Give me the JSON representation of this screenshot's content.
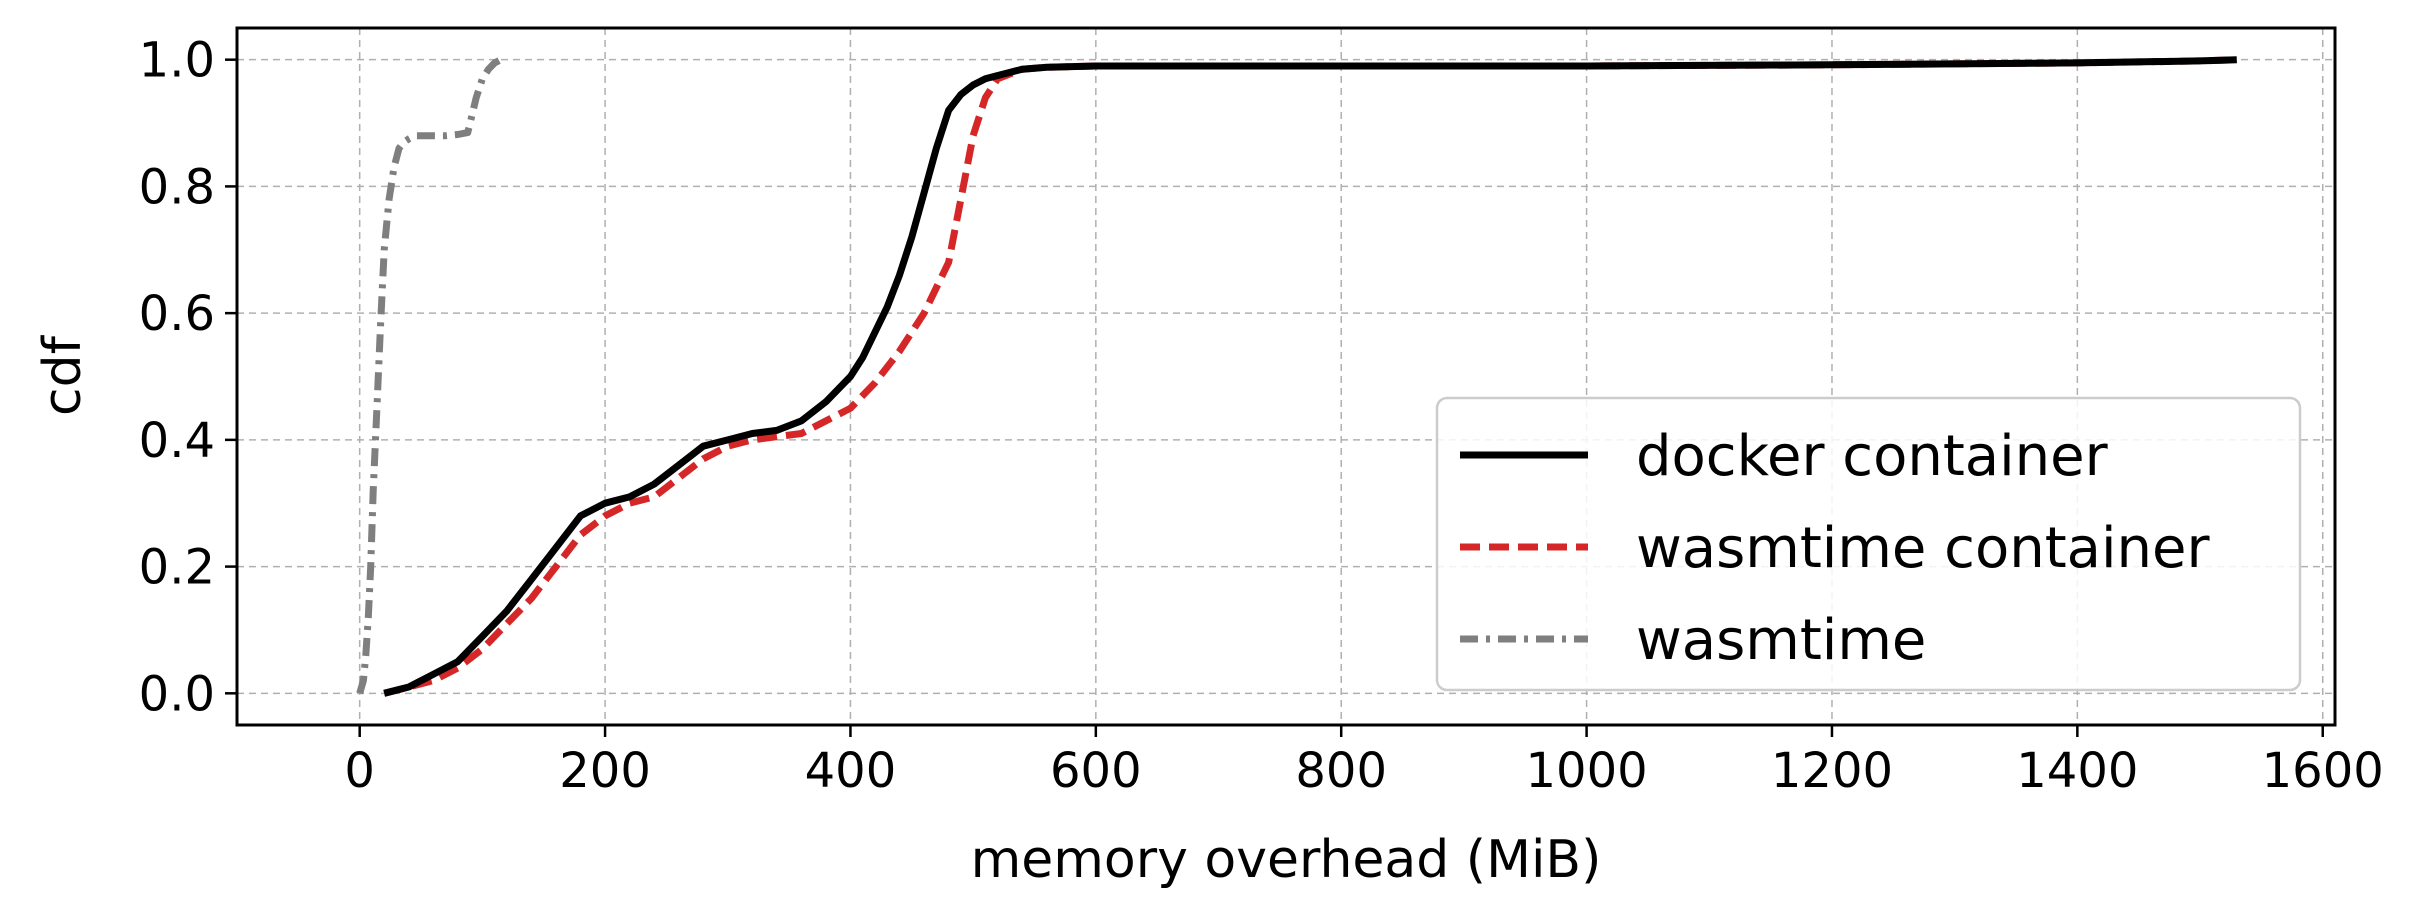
{
  "chart_data": {
    "type": "line",
    "xlabel": "memory overhead (MiB)",
    "ylabel": "cdf",
    "xlim": [
      -100,
      1610
    ],
    "ylim": [
      -0.05,
      1.05
    ],
    "xticks": [
      "0",
      "200",
      "400",
      "600",
      "800",
      "1000",
      "1200",
      "1400",
      "1600"
    ],
    "yticks": [
      "0.0",
      "0.2",
      "0.4",
      "0.6",
      "0.8",
      "1.0"
    ],
    "grid": true,
    "legend_position": "lower-right",
    "series": [
      {
        "name": "docker container",
        "color": "#000000",
        "dash": "solid",
        "x": [
          20,
          40,
          60,
          80,
          100,
          120,
          140,
          160,
          180,
          200,
          220,
          240,
          260,
          280,
          300,
          320,
          340,
          360,
          380,
          400,
          410,
          420,
          430,
          440,
          450,
          460,
          470,
          480,
          490,
          500,
          510,
          520,
          530,
          540,
          560,
          600,
          800,
          1000,
          1200,
          1400,
          1500,
          1530
        ],
        "y": [
          0.0,
          0.01,
          0.03,
          0.05,
          0.09,
          0.13,
          0.18,
          0.23,
          0.28,
          0.3,
          0.31,
          0.33,
          0.36,
          0.39,
          0.4,
          0.41,
          0.415,
          0.43,
          0.46,
          0.5,
          0.53,
          0.57,
          0.61,
          0.66,
          0.72,
          0.79,
          0.86,
          0.92,
          0.945,
          0.96,
          0.97,
          0.975,
          0.98,
          0.985,
          0.988,
          0.99,
          0.99,
          0.99,
          0.992,
          0.995,
          0.998,
          1.0
        ]
      },
      {
        "name": "wasmtime container",
        "color": "#d62728",
        "dash": "dashed",
        "x": [
          20,
          40,
          60,
          80,
          100,
          120,
          140,
          160,
          180,
          200,
          220,
          240,
          260,
          280,
          300,
          320,
          340,
          360,
          380,
          400,
          420,
          440,
          460,
          470,
          480,
          490,
          500,
          510,
          520,
          540,
          560,
          600,
          800,
          1000,
          1200,
          1400,
          1500,
          1530
        ],
        "y": [
          0.0,
          0.01,
          0.02,
          0.04,
          0.07,
          0.11,
          0.15,
          0.2,
          0.25,
          0.28,
          0.3,
          0.31,
          0.34,
          0.37,
          0.39,
          0.4,
          0.405,
          0.41,
          0.43,
          0.45,
          0.49,
          0.54,
          0.6,
          0.64,
          0.68,
          0.78,
          0.88,
          0.94,
          0.97,
          0.985,
          0.988,
          0.99,
          0.99,
          0.99,
          0.992,
          0.995,
          0.998,
          1.0
        ]
      },
      {
        "name": "wasmtime",
        "color": "#7f7f7f",
        "dash": "dashdot",
        "x": [
          0,
          3,
          5,
          7,
          9,
          11,
          14,
          17,
          20,
          24,
          28,
          32,
          36,
          40,
          45,
          50,
          60,
          70,
          80,
          88,
          90,
          95,
          100,
          105,
          110,
          115
        ],
        "y": [
          0.0,
          0.02,
          0.06,
          0.12,
          0.2,
          0.32,
          0.45,
          0.58,
          0.7,
          0.78,
          0.83,
          0.86,
          0.87,
          0.875,
          0.88,
          0.88,
          0.88,
          0.88,
          0.882,
          0.885,
          0.9,
          0.94,
          0.97,
          0.985,
          0.995,
          1.0
        ]
      }
    ]
  }
}
